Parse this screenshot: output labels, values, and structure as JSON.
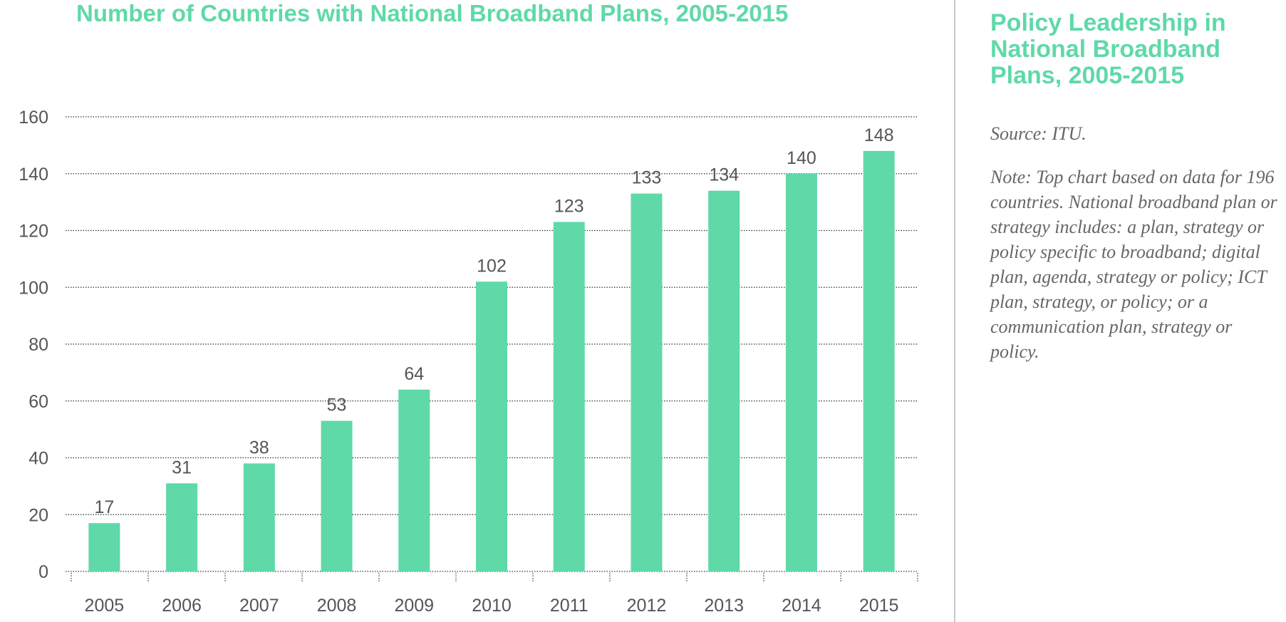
{
  "side_panel": {
    "heading": "Policy Leadership in National Broadband Plans, 2005-2015",
    "source": "Source: ITU.",
    "note": "Note: Top chart based on data for 196 countries. National broadband plan or strategy includes: a plan, strategy or policy specific to broadband; digital plan, agenda, strategy or policy; ICT plan, strategy, or policy; or a communication plan, strategy or policy."
  },
  "colors": {
    "bar": "#5fd9a8",
    "title": "#5fd9a8",
    "text": "#555555",
    "grid": "#333333"
  },
  "chart_data": {
    "type": "bar",
    "title": "Number of Countries with National Broadband Plans, 2005-2015",
    "xlabel": "",
    "ylabel": "",
    "categories": [
      "2005",
      "2006",
      "2007",
      "2008",
      "2009",
      "2010",
      "2011",
      "2012",
      "2013",
      "2014",
      "2015"
    ],
    "values": [
      17,
      31,
      38,
      53,
      64,
      102,
      123,
      133,
      134,
      140,
      148
    ],
    "value_labels": [
      "17",
      "31",
      "38",
      "53",
      "64",
      "102",
      "123",
      "133",
      "134",
      "140",
      "148"
    ],
    "ylim": [
      0,
      160
    ],
    "yticks": [
      "0",
      "20",
      "40",
      "60",
      "80",
      "100",
      "120",
      "140",
      "160"
    ],
    "grid": true,
    "grid_style": "dotted horizontal",
    "data_labels": "above bars"
  }
}
